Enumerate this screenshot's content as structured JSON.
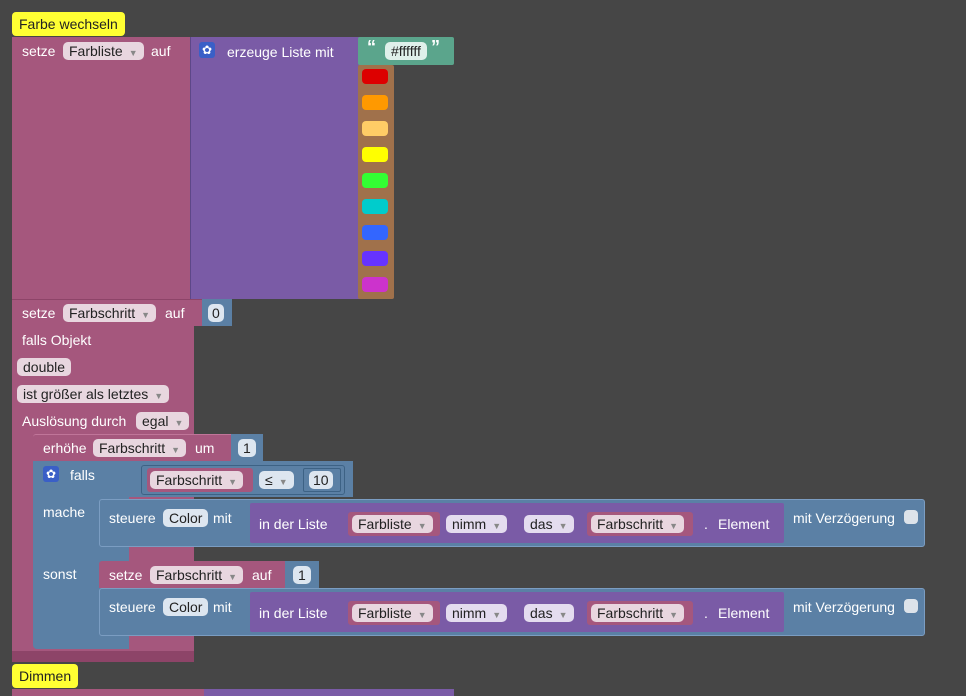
{
  "comments": {
    "farbe_wechseln": "Farbe wechseln",
    "dimmen": "Dimmen"
  },
  "set_farbliste": {
    "setze": "setze",
    "variable": "Farbliste",
    "auf": "auf"
  },
  "create_list": {
    "label": "erzeuge Liste mit",
    "first_text": "#ffffff",
    "quote_open": "“",
    "quote_close": "”"
  },
  "color_list": [
    "#dd0000",
    "#ff9900",
    "#ffcc66",
    "#ffff00",
    "#33ff33",
    "#00cccc",
    "#3366ff",
    "#6633ff",
    "#cc33cc"
  ],
  "set_farbschritt": {
    "setze": "setze",
    "variable": "Farbschritt",
    "auf": "auf",
    "value": "0"
  },
  "trigger": {
    "falls_objekt": "falls Objekt",
    "double": "double",
    "condition": "ist größer als letztes",
    "ausloesung": "Auslösung durch",
    "egal": "egal"
  },
  "increment": {
    "erhoehe": "erhöhe",
    "variable": "Farbschritt",
    "um": "um",
    "value": "1"
  },
  "if_block": {
    "falls": "falls",
    "mache": "mache",
    "sonst": "sonst",
    "variable": "Farbschritt",
    "operator": "≤",
    "limit": "10"
  },
  "control": {
    "steuere": "steuere",
    "target": "Color",
    "mit": "mit",
    "in_der_liste": "in der Liste",
    "list_var": "Farbliste",
    "nimm": "nimm",
    "das": "das",
    "index_var": "Farbschritt",
    "dot": ".",
    "element": "Element",
    "mit_verzoegerung": "mit Verzögerung"
  },
  "reset": {
    "setze": "setze",
    "variable": "Farbschritt",
    "auf": "auf",
    "value": "1"
  }
}
